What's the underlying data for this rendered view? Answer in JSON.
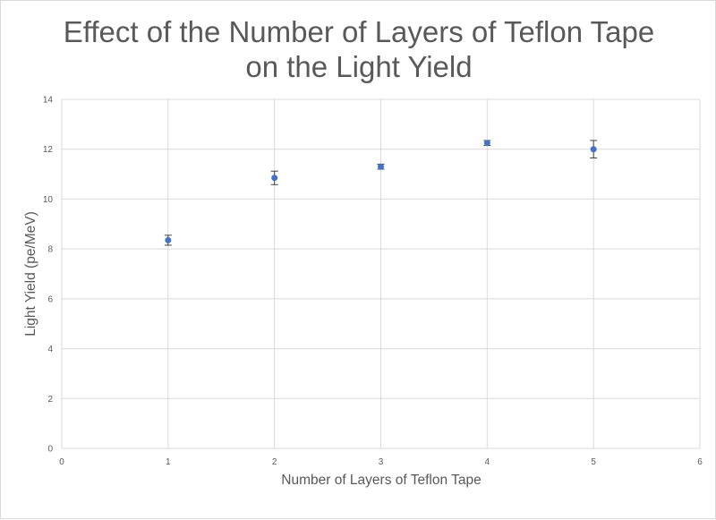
{
  "chart_data": {
    "type": "scatter",
    "title_lines": [
      "Effect of the Number of Layers of Teflon Tape",
      "on the Light Yield"
    ],
    "xlabel": "Number of Layers of Teflon Tape",
    "ylabel": "Light Yield (pe/MeV)",
    "xlim": [
      0,
      6
    ],
    "ylim": [
      0,
      14
    ],
    "x_ticks": [
      0,
      1,
      2,
      3,
      4,
      5,
      6
    ],
    "y_ticks": [
      0,
      2,
      4,
      6,
      8,
      10,
      12,
      14
    ],
    "grid": true,
    "legend": "none",
    "series": [
      {
        "x": [
          1,
          2,
          3,
          4,
          5
        ],
        "y": [
          8.35,
          10.85,
          11.3,
          12.25,
          12.0
        ],
        "error": [
          0.2,
          0.27,
          0.1,
          0.1,
          0.35
        ],
        "color": "#4472c4"
      }
    ]
  },
  "colors": {
    "marker": "#4472c4",
    "gridline": "#d9d9d9",
    "error_bar": "#404040",
    "text": "#595959"
  }
}
